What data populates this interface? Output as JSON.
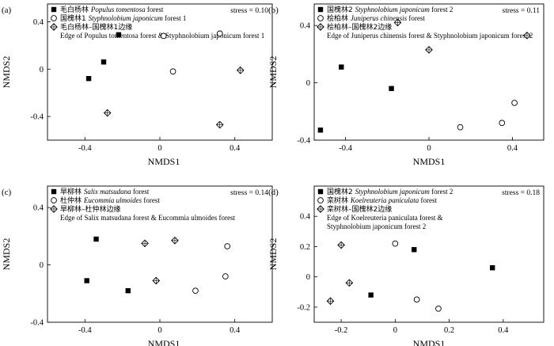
{
  "chart_data": [
    {
      "type": "scatter",
      "panel_label": "(a)",
      "stress": "stress = 0.10",
      "xlabel": "NMDS1",
      "ylabel": "NMDS2",
      "xlim": [
        -0.6,
        0.6
      ],
      "ylim": [
        -0.6,
        0.55
      ],
      "xticks": [
        -0.4,
        0,
        0.4
      ],
      "yticks": [
        0.4,
        0,
        -0.4
      ],
      "xtick_labels": [
        "-0.4",
        "0",
        "0.4"
      ],
      "ytick_labels": [
        "0.4",
        "0",
        "-0.4"
      ],
      "legend": [
        {
          "marker": "square",
          "zh": "毛白杨林",
          "en": "Populus tomentosa",
          "suffix": " forest"
        },
        {
          "marker": "circle",
          "zh": "国槐林1",
          "en": "Styphnolobium japonicum",
          "suffix": " forest 1"
        },
        {
          "marker": "diamond",
          "zh": "毛白杨林–国槐林1边缘",
          "edge": "Edge of Populus tomentosa forest & Styphnolobium japonicum forest 1"
        }
      ],
      "series": [
        {
          "marker": "square",
          "points": [
            [
              -0.38,
              -0.08
            ],
            [
              -0.3,
              0.06
            ],
            [
              -0.22,
              0.29
            ]
          ]
        },
        {
          "marker": "circle",
          "points": [
            [
              0.02,
              0.28
            ],
            [
              0.07,
              -0.02
            ],
            [
              0.32,
              0.3
            ]
          ]
        },
        {
          "marker": "diamond",
          "points": [
            [
              -0.28,
              -0.37
            ],
            [
              0.32,
              -0.47
            ],
            [
              0.43,
              -0.01
            ]
          ]
        }
      ]
    },
    {
      "type": "scatter",
      "panel_label": "(b)",
      "stress": "stress = 0.11",
      "xlabel": "NMDS1",
      "ylabel": "NMDS2",
      "xlim": [
        -0.55,
        0.55
      ],
      "ylim": [
        -0.4,
        0.55
      ],
      "xticks": [
        -0.4,
        0,
        0.4
      ],
      "yticks": [
        0.4,
        0,
        -0.4
      ],
      "xtick_labels": [
        "-0.4",
        "0",
        "0.4"
      ],
      "ytick_labels": [
        "0.4",
        "0",
        "-0.4"
      ],
      "legend": [
        {
          "marker": "square",
          "zh": "国槐林2",
          "en": "Styphnolobium japonicum",
          "suffix": " forest 2"
        },
        {
          "marker": "circle",
          "zh": "桧柏林",
          "en": "Juniperus chinensis",
          "suffix": " forest"
        },
        {
          "marker": "diamond",
          "zh": "桧柏林–国槐林2边缘",
          "edge": "Edge of Juniperus chinensis forest & Styphnolobium japonicum forest 2"
        }
      ],
      "series": [
        {
          "marker": "square",
          "points": [
            [
              -0.52,
              -0.33
            ],
            [
              -0.42,
              0.11
            ],
            [
              -0.18,
              -0.04
            ]
          ]
        },
        {
          "marker": "circle",
          "points": [
            [
              0.15,
              -0.31
            ],
            [
              0.35,
              -0.28
            ],
            [
              0.41,
              -0.14
            ]
          ]
        },
        {
          "marker": "diamond",
          "points": [
            [
              -0.15,
              0.42
            ],
            [
              0.0,
              0.23
            ],
            [
              0.47,
              0.33
            ]
          ]
        }
      ]
    },
    {
      "type": "scatter",
      "panel_label": "(c)",
      "stress": "stress = 0.14",
      "xlabel": "NMDS1",
      "ylabel": "NMDS2",
      "xlim": [
        -0.6,
        0.6
      ],
      "ylim": [
        -0.4,
        0.55
      ],
      "xticks": [
        -0.4,
        0,
        0.4
      ],
      "yticks": [
        0.4,
        0,
        -0.4
      ],
      "xtick_labels": [
        "-0.4",
        "0",
        "0.4"
      ],
      "ytick_labels": [
        "0.4",
        "0",
        "-0.4"
      ],
      "legend": [
        {
          "marker": "square",
          "zh": "旱柳林",
          "en": "Salix matsudana",
          "suffix": " forest"
        },
        {
          "marker": "circle",
          "zh": "杜仲林",
          "en": "Eucommia ulmoides",
          "suffix": " forest"
        },
        {
          "marker": "diamond",
          "zh": "旱柳林–杜仲林边缘",
          "edge": "Edge of Salix matsudana forest & Eucommia ulmoides forest"
        }
      ],
      "series": [
        {
          "marker": "square",
          "points": [
            [
              -0.39,
              -0.11
            ],
            [
              -0.34,
              0.18
            ],
            [
              -0.17,
              -0.18
            ]
          ]
        },
        {
          "marker": "circle",
          "points": [
            [
              0.19,
              -0.18
            ],
            [
              0.35,
              -0.08
            ],
            [
              0.36,
              0.13
            ]
          ]
        },
        {
          "marker": "diamond",
          "points": [
            [
              -0.08,
              0.15
            ],
            [
              -0.02,
              -0.11
            ],
            [
              0.08,
              0.17
            ]
          ]
        }
      ]
    },
    {
      "type": "scatter",
      "panel_label": "(d)",
      "stress": "stress = 0.18",
      "xlabel": "NMDS1",
      "ylabel": "NMDS2",
      "xlim": [
        -0.3,
        0.55
      ],
      "ylim": [
        -0.3,
        0.6
      ],
      "xticks": [
        -0.2,
        0,
        0.2,
        0.4
      ],
      "yticks": [
        0.4,
        0.2,
        0,
        -0.2
      ],
      "xtick_labels": [
        "-0.2",
        "0",
        "0.2",
        "0.4"
      ],
      "ytick_labels": [
        "0.4",
        "0.2",
        "0",
        "-0.2"
      ],
      "legend": [
        {
          "marker": "square",
          "zh": "国槐林2",
          "en": "Styphnolobium japonicum",
          "suffix": " forest 2"
        },
        {
          "marker": "circle",
          "zh": "栾树林",
          "en": "Koelreuteria paniculata",
          "suffix": " forest"
        },
        {
          "marker": "diamond",
          "zh": "栾树林–国槐林2边缘",
          "edge": "Edge of Koelreuteria paniculata forest &",
          "edge2": "Styphnolobium japonicum forest 2"
        }
      ],
      "series": [
        {
          "marker": "square",
          "points": [
            [
              -0.09,
              -0.12
            ],
            [
              0.07,
              0.18
            ],
            [
              0.36,
              0.06
            ]
          ]
        },
        {
          "marker": "circle",
          "points": [
            [
              0.0,
              0.22
            ],
            [
              0.08,
              -0.15
            ],
            [
              0.16,
              -0.21
            ]
          ]
        },
        {
          "marker": "diamond",
          "points": [
            [
              -0.24,
              -0.16
            ],
            [
              -0.2,
              0.21
            ],
            [
              -0.17,
              -0.04
            ]
          ]
        }
      ]
    }
  ]
}
